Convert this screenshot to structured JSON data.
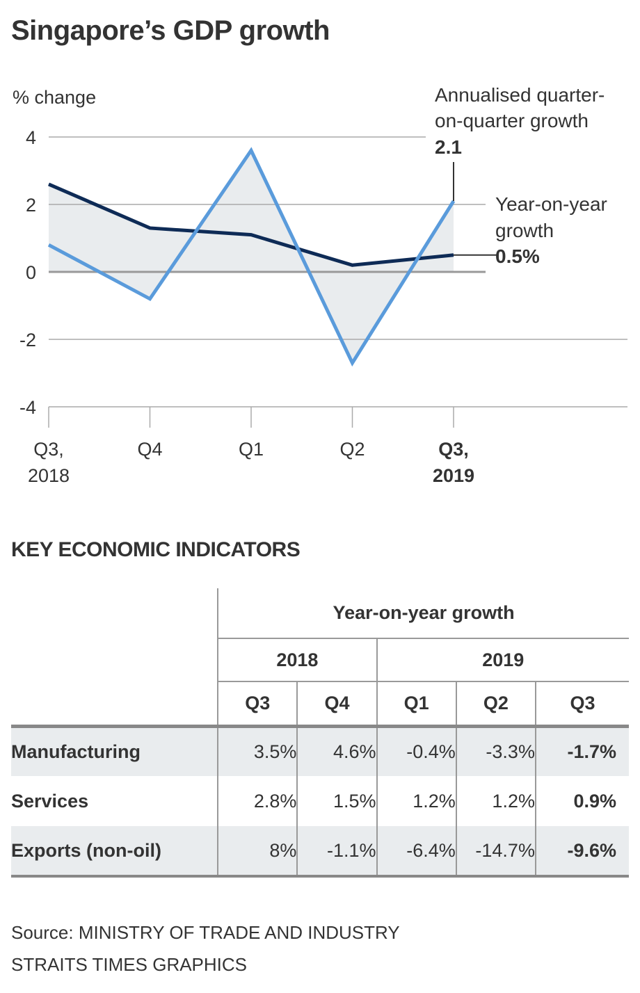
{
  "title": "Singapore’s GDP growth",
  "chart_data": {
    "type": "line",
    "title": "Singapore’s GDP growth",
    "ylabel": "% change",
    "xlabel": "",
    "ylim": [
      -4,
      4
    ],
    "yticks": [
      4,
      2,
      0,
      -2,
      -4
    ],
    "ytick_labels": [
      "4",
      "2",
      "0",
      "-2",
      "-4"
    ],
    "grid": true,
    "categories": [
      "Q3, 2018",
      "Q4",
      "Q1",
      "Q2",
      "Q3, 2019"
    ],
    "category_labels": [
      {
        "line1": "Q3,",
        "line2": "2018",
        "bold": false
      },
      {
        "line1": "Q4",
        "line2": "",
        "bold": false
      },
      {
        "line1": "Q1",
        "line2": "",
        "bold": false
      },
      {
        "line1": "Q2",
        "line2": "",
        "bold": false
      },
      {
        "line1": "Q3,",
        "line2": "2019",
        "bold": true
      }
    ],
    "series": [
      {
        "name": "Year-on-year growth",
        "color": "#0e2b56",
        "values": [
          2.6,
          1.3,
          1.1,
          0.2,
          0.5
        ]
      },
      {
        "name": "Annualised quarter-on-quarter growth",
        "color": "#5a9bdb",
        "values": [
          0.8,
          -0.8,
          3.6,
          -2.7,
          2.1
        ]
      }
    ],
    "fill_color": "#e9ecee",
    "annotations": [
      {
        "series": "Annualised quarter-on-quarter growth",
        "lines": [
          "Annualised quarter-",
          "on-quarter growth"
        ],
        "value": "2.1"
      },
      {
        "series": "Year-on-year growth",
        "lines": [
          "Year-on-year",
          "growth"
        ],
        "value": "0.5%"
      }
    ]
  },
  "indicators": {
    "title": "KEY ECONOMIC INDICATORS",
    "group_header": "Year-on-year growth",
    "years": [
      "2018",
      "2019"
    ],
    "quarters": [
      "Q3",
      "Q4",
      "Q1",
      "Q2",
      "Q3"
    ],
    "rows": [
      {
        "label": "Manufacturing",
        "values": [
          "3.5%",
          "4.6%",
          "-0.4%",
          "-3.3%",
          "-1.7%"
        ]
      },
      {
        "label": "Services",
        "values": [
          "2.8%",
          "1.5%",
          "1.2%",
          "1.2%",
          "0.9%"
        ]
      },
      {
        "label": "Exports (non-oil)",
        "values": [
          "8%",
          "-1.1%",
          "-6.4%",
          "-14.7%",
          "-9.6%"
        ]
      }
    ]
  },
  "source": {
    "line1": "Source: MINISTRY OF TRADE AND INDUSTRY",
    "line2": "STRAITS TIMES GRAPHICS"
  }
}
